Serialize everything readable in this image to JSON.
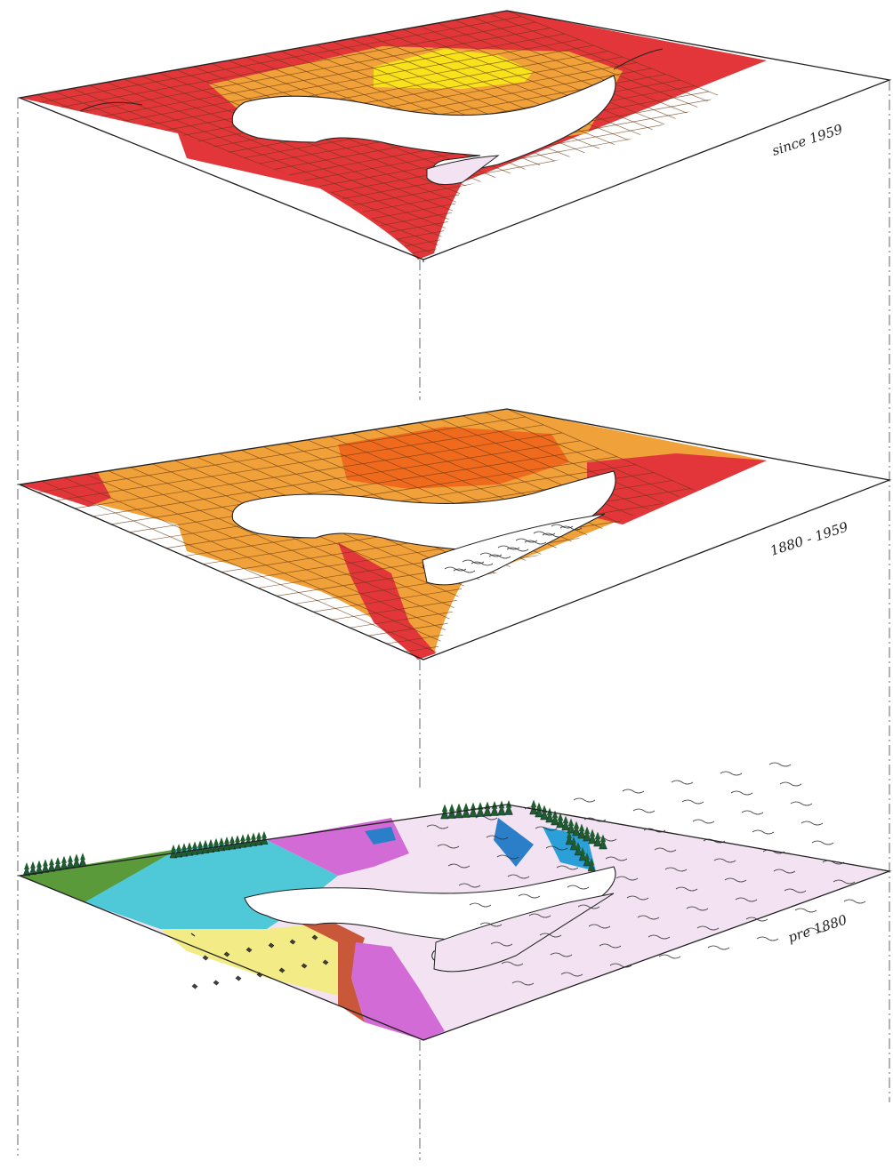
{
  "layers": [
    {
      "id": "since-1959",
      "label": "since 1959"
    },
    {
      "id": "1880-1959",
      "label": "1880 - 1959"
    },
    {
      "id": "pre-1880",
      "label": "pre 1880"
    }
  ],
  "colors": {
    "dense_urban": "#e2363a",
    "suburban": "#f0a13a",
    "commercial": "#f7e21b",
    "industrial": "#f06a1e",
    "wetland": "#f3e3f2",
    "meadow": "#4fc9d8",
    "forest": "#5a9a3a",
    "prairie": "#f3ec86",
    "marsh": "#d36bd6",
    "clay": "#c9573a",
    "trees": "#1f5d2f"
  }
}
